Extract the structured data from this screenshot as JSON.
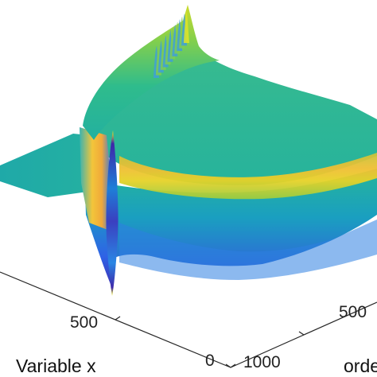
{
  "chart_data": {
    "type": "surface",
    "title": "",
    "xlabel": "Variable x",
    "ylabel": "orde",
    "zlabel": "",
    "x_ticks": [
      "500",
      "0"
    ],
    "y_ticks": [
      "1000",
      "500"
    ],
    "xlim": [
      0,
      1000
    ],
    "ylim": [
      0,
      1000
    ],
    "colormap": "parula",
    "colors": {
      "low": "#3e26a8",
      "mid_low": "#2a7fe0",
      "mid": "#14b7a0",
      "mid_high": "#8bd04b",
      "high": "#f9fb15"
    },
    "features": [
      {
        "name": "flat plane",
        "z": 0.45
      },
      {
        "name": "central spike at x=500",
        "z_min": -0.9,
        "z_max": 0.85
      },
      {
        "name": "ridge peak",
        "z": 1.0
      }
    ],
    "grid": false,
    "legend": "none"
  }
}
